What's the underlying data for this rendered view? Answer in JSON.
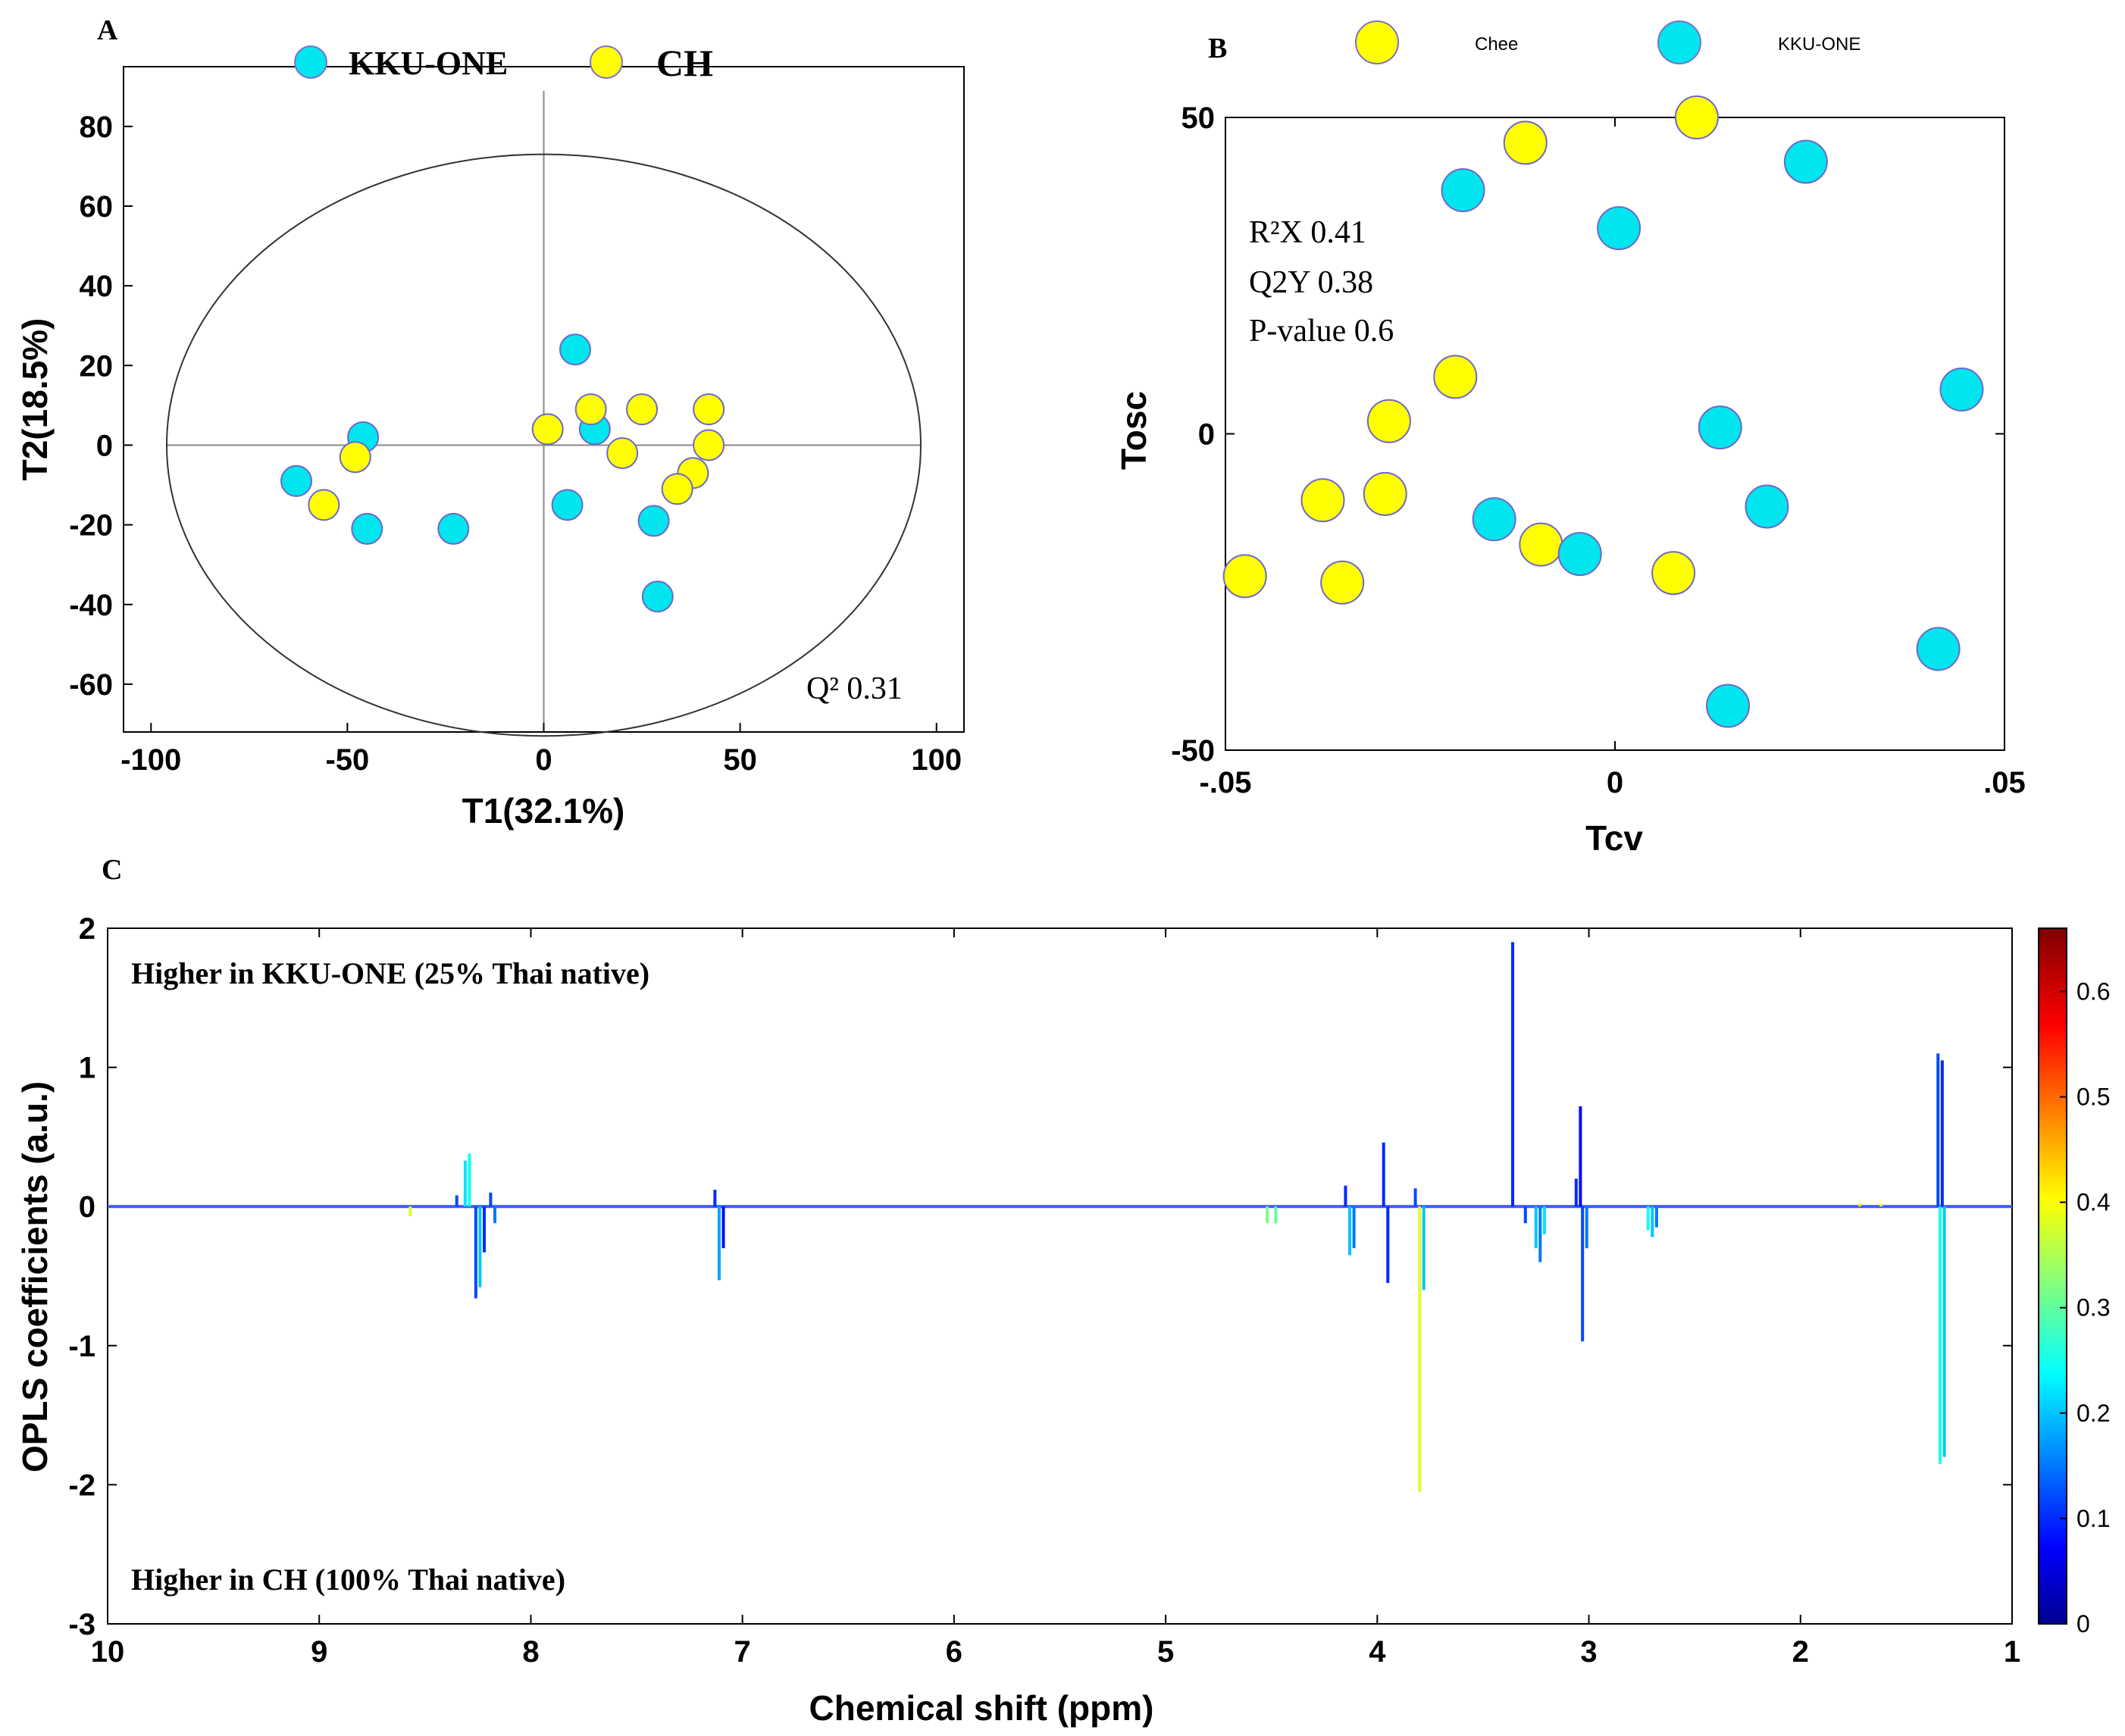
{
  "chart_data": [
    {
      "panel": "A",
      "type": "scatter",
      "xlabel": "T1(32.1%)",
      "ylabel": "T2(18.5%)",
      "xlim": [
        -107,
        107
      ],
      "ylim": [
        -72,
        95
      ],
      "xticks": [
        -100,
        -50,
        0,
        50,
        100
      ],
      "yticks": [
        80,
        60,
        40,
        20,
        0,
        -20,
        -40,
        -60
      ],
      "ellipse": {
        "cx": 0,
        "cy": 0,
        "rx": 96,
        "ry": 73
      },
      "annotation": "Q² 0.31",
      "legend": [
        "KKU-ONE",
        "CH"
      ],
      "series": [
        {
          "name": "KKU-ONE",
          "color": "#00e5ee",
          "points": [
            [
              8,
              24
            ],
            [
              -46,
              2
            ],
            [
              -63,
              -9
            ],
            [
              -45,
              -21
            ],
            [
              -23,
              -21
            ],
            [
              13,
              4
            ],
            [
              6,
              -15
            ],
            [
              28,
              -19
            ],
            [
              29,
              -38
            ]
          ]
        },
        {
          "name": "CH",
          "color": "#ffff00",
          "points": [
            [
              1,
              4
            ],
            [
              12,
              9
            ],
            [
              20,
              -2
            ],
            [
              25,
              9
            ],
            [
              42,
              9
            ],
            [
              42,
              0
            ],
            [
              38,
              -7
            ],
            [
              34,
              -11
            ],
            [
              -48,
              -3
            ],
            [
              -56,
              -15
            ]
          ]
        }
      ]
    },
    {
      "panel": "B",
      "type": "scatter",
      "xlabel": "Tcv",
      "ylabel": "Tosc",
      "xlim": [
        -0.05,
        0.05
      ],
      "ylim": [
        -50,
        50
      ],
      "xticks": [
        -0.05,
        0,
        0.05
      ],
      "yticks": [
        50,
        0,
        -50
      ],
      "annotations": [
        "R²X 0.41",
        "Q2Y 0.38",
        "P-value 0.6"
      ],
      "legend": [
        "Chee",
        "KKU-ONE"
      ],
      "series": [
        {
          "name": "Chee",
          "color": "#ffff00",
          "points": [
            [
              -0.0115,
              46
            ],
            [
              0.0105,
              50
            ],
            [
              -0.0205,
              9
            ],
            [
              -0.029,
              2
            ],
            [
              -0.0375,
              -10.5
            ],
            [
              -0.0295,
              -9.5
            ],
            [
              -0.0095,
              -17.5
            ],
            [
              0.0075,
              -22
            ],
            [
              -0.0475,
              -22.5
            ],
            [
              -0.035,
              -23.5
            ]
          ]
        },
        {
          "name": "KKU-ONE",
          "color": "#00e5ee",
          "points": [
            [
              -0.0195,
              38.5
            ],
            [
              0.0005,
              32.5
            ],
            [
              0.0245,
              43
            ],
            [
              0.0445,
              7
            ],
            [
              0.0135,
              1
            ],
            [
              0.0195,
              -11.5
            ],
            [
              -0.0155,
              -13.5
            ],
            [
              -0.0045,
              -19
            ],
            [
              0.0415,
              -34
            ],
            [
              0.0145,
              -43
            ]
          ]
        }
      ]
    },
    {
      "panel": "C",
      "type": "line",
      "xlabel": "Chemical shift (ppm)",
      "ylabel": "OPLS coefficients (a.u.)",
      "xlim": [
        10,
        1
      ],
      "ylim": [
        -3,
        2
      ],
      "xticks": [
        10,
        9,
        8,
        7,
        6,
        5,
        4,
        3,
        2,
        1
      ],
      "yticks": [
        2,
        1,
        0,
        -1,
        -2,
        -3
      ],
      "top_note": "Higher in KKU-ONE (25% Thai native)",
      "bottom_note": "Higher in CH (100% Thai native)",
      "colorbar": {
        "min": 0,
        "max": 0.66,
        "ticks": [
          0,
          0.1,
          0.2,
          0.3,
          0.4,
          0.5,
          0.6
        ]
      },
      "peaks": [
        {
          "ppm": 8.57,
          "value": -0.07,
          "c": 0.38
        },
        {
          "ppm": 8.35,
          "value": 0.08,
          "c": 0.12
        },
        {
          "ppm": 8.31,
          "value": 0.33,
          "c": 0.22
        },
        {
          "ppm": 8.29,
          "value": 0.38,
          "c": 0.25
        },
        {
          "ppm": 8.26,
          "value": -0.66,
          "c": 0.12
        },
        {
          "ppm": 8.24,
          "value": -0.58,
          "c": 0.2
        },
        {
          "ppm": 8.22,
          "value": -0.33,
          "c": 0.1
        },
        {
          "ppm": 8.19,
          "value": 0.1,
          "c": 0.12
        },
        {
          "ppm": 8.17,
          "value": -0.12,
          "c": 0.15
        },
        {
          "ppm": 7.13,
          "value": 0.12,
          "c": 0.1
        },
        {
          "ppm": 7.11,
          "value": -0.53,
          "c": 0.18
        },
        {
          "ppm": 7.09,
          "value": -0.3,
          "c": 0.08
        },
        {
          "ppm": 4.52,
          "value": -0.12,
          "c": 0.32
        },
        {
          "ppm": 4.48,
          "value": -0.12,
          "c": 0.3
        },
        {
          "ppm": 4.15,
          "value": 0.15,
          "c": 0.1
        },
        {
          "ppm": 4.13,
          "value": -0.35,
          "c": 0.2
        },
        {
          "ppm": 4.11,
          "value": -0.3,
          "c": 0.15
        },
        {
          "ppm": 3.97,
          "value": 0.46,
          "c": 0.1
        },
        {
          "ppm": 3.95,
          "value": -0.55,
          "c": 0.1
        },
        {
          "ppm": 3.82,
          "value": 0.13,
          "c": 0.12
        },
        {
          "ppm": 3.8,
          "value": -2.05,
          "c": 0.38
        },
        {
          "ppm": 3.78,
          "value": -0.6,
          "c": 0.2
        },
        {
          "ppm": 3.36,
          "value": 1.9,
          "c": 0.1
        },
        {
          "ppm": 3.3,
          "value": -0.12,
          "c": 0.12
        },
        {
          "ppm": 3.25,
          "value": -0.3,
          "c": 0.2
        },
        {
          "ppm": 3.23,
          "value": -0.4,
          "c": 0.15
        },
        {
          "ppm": 3.21,
          "value": -0.2,
          "c": 0.22
        },
        {
          "ppm": 3.06,
          "value": 0.2,
          "c": 0.1
        },
        {
          "ppm": 3.04,
          "value": 0.72,
          "c": 0.08
        },
        {
          "ppm": 3.03,
          "value": -0.97,
          "c": 0.12
        },
        {
          "ppm": 3.01,
          "value": -0.3,
          "c": 0.15
        },
        {
          "ppm": 2.72,
          "value": -0.17,
          "c": 0.25
        },
        {
          "ppm": 2.7,
          "value": -0.22,
          "c": 0.2
        },
        {
          "ppm": 2.68,
          "value": -0.15,
          "c": 0.15
        },
        {
          "ppm": 1.72,
          "value": 0.02,
          "c": 0.42
        },
        {
          "ppm": 1.62,
          "value": 0.02,
          "c": 0.4
        },
        {
          "ppm": 1.35,
          "value": 1.1,
          "c": 0.12
        },
        {
          "ppm": 1.34,
          "value": -1.85,
          "c": 0.25
        },
        {
          "ppm": 1.33,
          "value": 1.05,
          "c": 0.1
        },
        {
          "ppm": 1.32,
          "value": -1.8,
          "c": 0.2
        }
      ]
    }
  ],
  "panels": {
    "a": "A",
    "b": "B",
    "c": "C"
  }
}
